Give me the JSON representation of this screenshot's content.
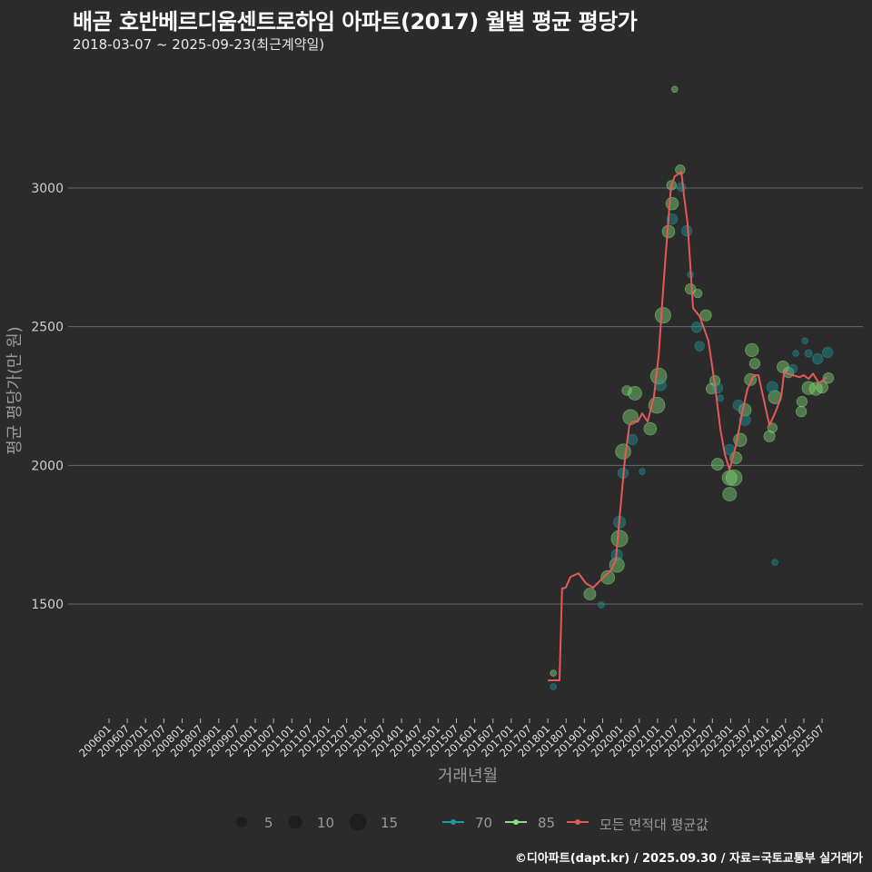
{
  "title": "배곧 호반베르디움센트로하임 아파트(2017) 월별 평균 평당가",
  "subtitle": "2018-03-07 ~ 2025-09-23(최근계약일)",
  "footer": "©디아파트(dapt.kr) / 2025.09.30 / 자료=국토교통부 실거래가",
  "colors": {
    "bg": "#2b2b2c",
    "grid": "#6a6a6a",
    "s70": "#1f9a9a",
    "s85": "#86e07a",
    "avg": "#e35a5a",
    "text": "#cfcfcf"
  },
  "legend": {
    "size_title": "",
    "sizes": [
      {
        "value": 5,
        "label": "5"
      },
      {
        "value": 10,
        "label": "10"
      },
      {
        "value": 15,
        "label": "15"
      }
    ],
    "series": [
      {
        "key": "s70",
        "label": "70"
      },
      {
        "key": "s85",
        "label": "85"
      },
      {
        "key": "avg",
        "label": "모든 면적대 평균값"
      }
    ]
  },
  "chart_data": {
    "type": "scatter",
    "title": "배곧 호반베르디움센트로하임 아파트(2017) 월별 평균 평당가",
    "xlabel": "거래년월",
    "ylabel": "평균 평당가(만 원)",
    "x_ticks": [
      "200601",
      "200607",
      "200701",
      "200707",
      "200801",
      "200807",
      "200901",
      "200907",
      "201001",
      "201007",
      "201101",
      "201107",
      "201201",
      "201207",
      "201301",
      "201307",
      "201401",
      "201407",
      "201501",
      "201507",
      "201601",
      "201607",
      "201701",
      "201707",
      "201801",
      "201807",
      "201901",
      "201907",
      "202001",
      "202007",
      "202101",
      "202107",
      "202201",
      "202207",
      "202301",
      "202307",
      "202401",
      "202407",
      "202501",
      "202507"
    ],
    "y_ticks": [
      1500,
      2000,
      2500,
      3000
    ],
    "y_tick_labels": [
      "1500",
      "2000",
      "2500",
      "3000"
    ],
    "xlim": [
      2005.9,
      2026.0
    ],
    "ylim": [
      1140,
      3420
    ],
    "grid": "horizontal",
    "legend_position": "bottom",
    "average_line": {
      "name": "모든 면적대 평균값",
      "points": [
        [
          2018.0,
          1225
        ],
        [
          2018.32,
          1225
        ],
        [
          2018.39,
          1556
        ],
        [
          2018.49,
          1559
        ],
        [
          2018.62,
          1598
        ],
        [
          2018.84,
          1611
        ],
        [
          2019.04,
          1575
        ],
        [
          2019.24,
          1559
        ],
        [
          2019.46,
          1588
        ],
        [
          2019.74,
          1624
        ],
        [
          2019.86,
          1660
        ],
        [
          2019.98,
          1837
        ],
        [
          2020.11,
          2027
        ],
        [
          2020.23,
          2145
        ],
        [
          2020.33,
          2158
        ],
        [
          2020.46,
          2158
        ],
        [
          2020.58,
          2187
        ],
        [
          2020.73,
          2158
        ],
        [
          2020.9,
          2247
        ],
        [
          2021.03,
          2394
        ],
        [
          2021.15,
          2626
        ],
        [
          2021.28,
          2859
        ],
        [
          2021.37,
          3006
        ],
        [
          2021.47,
          3042
        ],
        [
          2021.65,
          3058
        ],
        [
          2021.72,
          2976
        ],
        [
          2021.82,
          2875
        ],
        [
          2021.9,
          2715
        ],
        [
          2021.97,
          2567
        ],
        [
          2022.15,
          2538
        ],
        [
          2022.39,
          2449
        ],
        [
          2022.57,
          2289
        ],
        [
          2022.72,
          2129
        ],
        [
          2022.84,
          2040
        ],
        [
          2022.97,
          1985
        ],
        [
          2023.14,
          2070
        ],
        [
          2023.31,
          2187
        ],
        [
          2023.46,
          2276
        ],
        [
          2023.64,
          2325
        ],
        [
          2023.76,
          2325
        ],
        [
          2023.88,
          2253
        ],
        [
          2024.06,
          2145
        ],
        [
          2024.21,
          2187
        ],
        [
          2024.38,
          2246
        ],
        [
          2024.46,
          2335
        ],
        [
          2024.7,
          2325
        ],
        [
          2024.88,
          2318
        ],
        [
          2025.0,
          2325
        ],
        [
          2025.13,
          2312
        ],
        [
          2025.25,
          2331
        ],
        [
          2025.42,
          2296
        ],
        [
          2025.62,
          2318
        ]
      ]
    },
    "series": [
      {
        "name": "85",
        "points": [
          [
            2018.15,
            1251,
            1
          ],
          [
            2019.15,
            1536,
            7
          ],
          [
            2019.64,
            1596,
            10
          ],
          [
            2019.89,
            1641,
            12
          ],
          [
            2019.96,
            1736,
            16
          ],
          [
            2020.06,
            2050,
            13
          ],
          [
            2020.26,
            2174,
            13
          ],
          [
            2020.38,
            2260,
            10
          ],
          [
            2020.16,
            2270,
            4
          ],
          [
            2020.8,
            2132,
            8
          ],
          [
            2020.98,
            2217,
            15
          ],
          [
            2021.03,
            2322,
            15
          ],
          [
            2021.15,
            2541,
            14
          ],
          [
            2021.3,
            2843,
            8
          ],
          [
            2021.4,
            2944,
            8
          ],
          [
            2021.38,
            3010,
            4
          ],
          [
            2021.62,
            3066,
            4
          ],
          [
            2021.47,
            3356,
            1
          ],
          [
            2021.9,
            2636,
            5
          ],
          [
            2022.1,
            2620,
            3
          ],
          [
            2022.32,
            2541,
            6
          ],
          [
            2022.57,
            2305,
            5
          ],
          [
            2022.47,
            2276,
            5
          ],
          [
            2022.64,
            2004,
            7
          ],
          [
            2022.97,
            1955,
            12
          ],
          [
            2023.09,
            1955,
            15
          ],
          [
            2022.97,
            1896,
            10
          ],
          [
            2023.14,
            2027,
            7
          ],
          [
            2023.26,
            2092,
            9
          ],
          [
            2023.39,
            2200,
            8
          ],
          [
            2023.54,
            2309,
            7
          ],
          [
            2023.58,
            2416,
            9
          ],
          [
            2023.66,
            2367,
            5
          ],
          [
            2024.21,
            2246,
            9
          ],
          [
            2024.06,
            2105,
            6
          ],
          [
            2024.14,
            2135,
            4
          ],
          [
            2024.43,
            2355,
            7
          ],
          [
            2024.58,
            2335,
            5
          ],
          [
            2024.95,
            2230,
            5
          ],
          [
            2024.93,
            2194,
            5
          ],
          [
            2025.13,
            2279,
            9
          ],
          [
            2025.33,
            2276,
            9
          ],
          [
            2025.5,
            2282,
            7
          ],
          [
            2025.67,
            2315,
            5
          ]
        ]
      },
      {
        "name": "70",
        "points": [
          [
            2018.15,
            1202,
            1
          ],
          [
            2019.46,
            1497,
            1
          ],
          [
            2019.89,
            1677,
            6
          ],
          [
            2019.96,
            1795,
            7
          ],
          [
            2020.06,
            1972,
            5
          ],
          [
            2020.31,
            2093,
            5
          ],
          [
            2020.58,
            1978,
            1
          ],
          [
            2021.08,
            2289,
            6
          ],
          [
            2021.4,
            2888,
            5
          ],
          [
            2021.65,
            3003,
            3
          ],
          [
            2021.8,
            2846,
            5
          ],
          [
            2021.9,
            2688,
            1
          ],
          [
            2022.07,
            2498,
            5
          ],
          [
            2022.15,
            2430,
            4
          ],
          [
            2022.64,
            2279,
            5
          ],
          [
            2022.72,
            2243,
            1
          ],
          [
            2022.97,
            2057,
            5
          ],
          [
            2023.21,
            2217,
            5
          ],
          [
            2023.39,
            2164,
            6
          ],
          [
            2024.14,
            2282,
            6
          ],
          [
            2024.21,
            1650,
            1
          ],
          [
            2024.7,
            2348,
            3
          ],
          [
            2024.78,
            2404,
            1
          ],
          [
            2025.03,
            2449,
            1
          ],
          [
            2025.13,
            2404,
            2
          ],
          [
            2025.38,
            2384,
            5
          ],
          [
            2025.65,
            2407,
            5
          ]
        ]
      }
    ]
  }
}
